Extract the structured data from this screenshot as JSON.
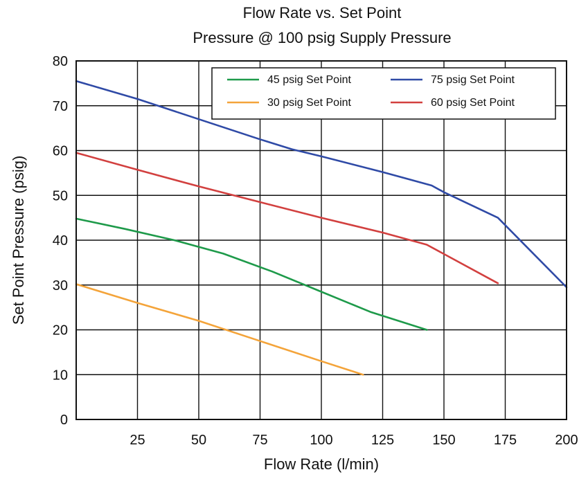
{
  "chart_data": {
    "type": "line",
    "title": "Flow Rate vs. Set Point",
    "subtitle": "Pressure @ 100 psig Supply Pressure",
    "xlabel": "Flow Rate (l/min)",
    "ylabel": "Set Point Pressure (psig)",
    "xlim": [
      0,
      200
    ],
    "ylim": [
      0,
      80
    ],
    "xticks": [
      25,
      50,
      75,
      100,
      125,
      150,
      175,
      200
    ],
    "yticks": [
      0,
      10,
      20,
      30,
      40,
      50,
      60,
      70,
      80
    ],
    "grid": true,
    "legend_position": "top-right",
    "series": [
      {
        "name": "45 psig Set Point",
        "color": "#1e9a4a",
        "x": [
          0,
          20,
          40,
          60,
          80,
          100,
          120,
          143
        ],
        "y": [
          44.8,
          42.5,
          40,
          37,
          33,
          28.5,
          24,
          20
        ]
      },
      {
        "name": "75 psig Set Point",
        "color": "#2f4aa6",
        "x": [
          0,
          25,
          50,
          75,
          88,
          100,
          125,
          145,
          150,
          172,
          200
        ],
        "y": [
          75.5,
          71.5,
          67,
          62.5,
          60.3,
          58.7,
          55.2,
          52.2,
          50.7,
          45,
          29.5
        ]
      },
      {
        "name": "30 psig Set Point",
        "color": "#f4a43a",
        "x": [
          0,
          25,
          50,
          75,
          100,
          117
        ],
        "y": [
          30.2,
          26,
          22,
          17.5,
          13,
          10
        ]
      },
      {
        "name": "60 psig Set Point",
        "color": "#d2403f",
        "x": [
          0,
          25,
          50,
          75,
          100,
          125,
          143,
          172
        ],
        "y": [
          59.5,
          55.7,
          52,
          48.5,
          45,
          41.7,
          39,
          30.4
        ]
      }
    ],
    "legend_rows": [
      [
        "45 psig Set Point",
        "75 psig Set Point"
      ],
      [
        "30 psig Set Point",
        "60 psig Set Point"
      ]
    ]
  }
}
